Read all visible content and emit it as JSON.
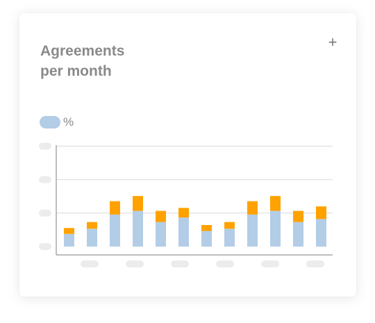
{
  "card": {
    "title_line1": "Agreements",
    "title_line2": "per month",
    "add_icon": "plus-icon",
    "add_label": "+"
  },
  "legend": {
    "label": "%",
    "swatch_color": "#b3cde6"
  },
  "colors": {
    "bottom": "#b3cde6",
    "top": "#ffa200",
    "grid": "#d9d9d9",
    "axis": "#a9a9a9",
    "placeholder": "#ececec"
  },
  "chart_data": {
    "type": "bar",
    "stacked": true,
    "categories": [
      "",
      "",
      "",
      "",
      "",
      "",
      "",
      "",
      "",
      "",
      "",
      ""
    ],
    "series": [
      {
        "values": [
          25,
          33,
          61,
          68,
          48,
          52,
          29,
          33,
          61,
          68,
          48,
          54
        ]
      },
      {
        "values": [
          17,
          24,
          43,
          48,
          33,
          39,
          21,
          24,
          43,
          48,
          33,
          37
        ]
      }
    ],
    "ylim": [
      0,
      140
    ],
    "y_tick_values": [
      0,
      45,
      90,
      135
    ],
    "grid": true,
    "y_labels_shown": false,
    "x_labels_shown": false
  }
}
